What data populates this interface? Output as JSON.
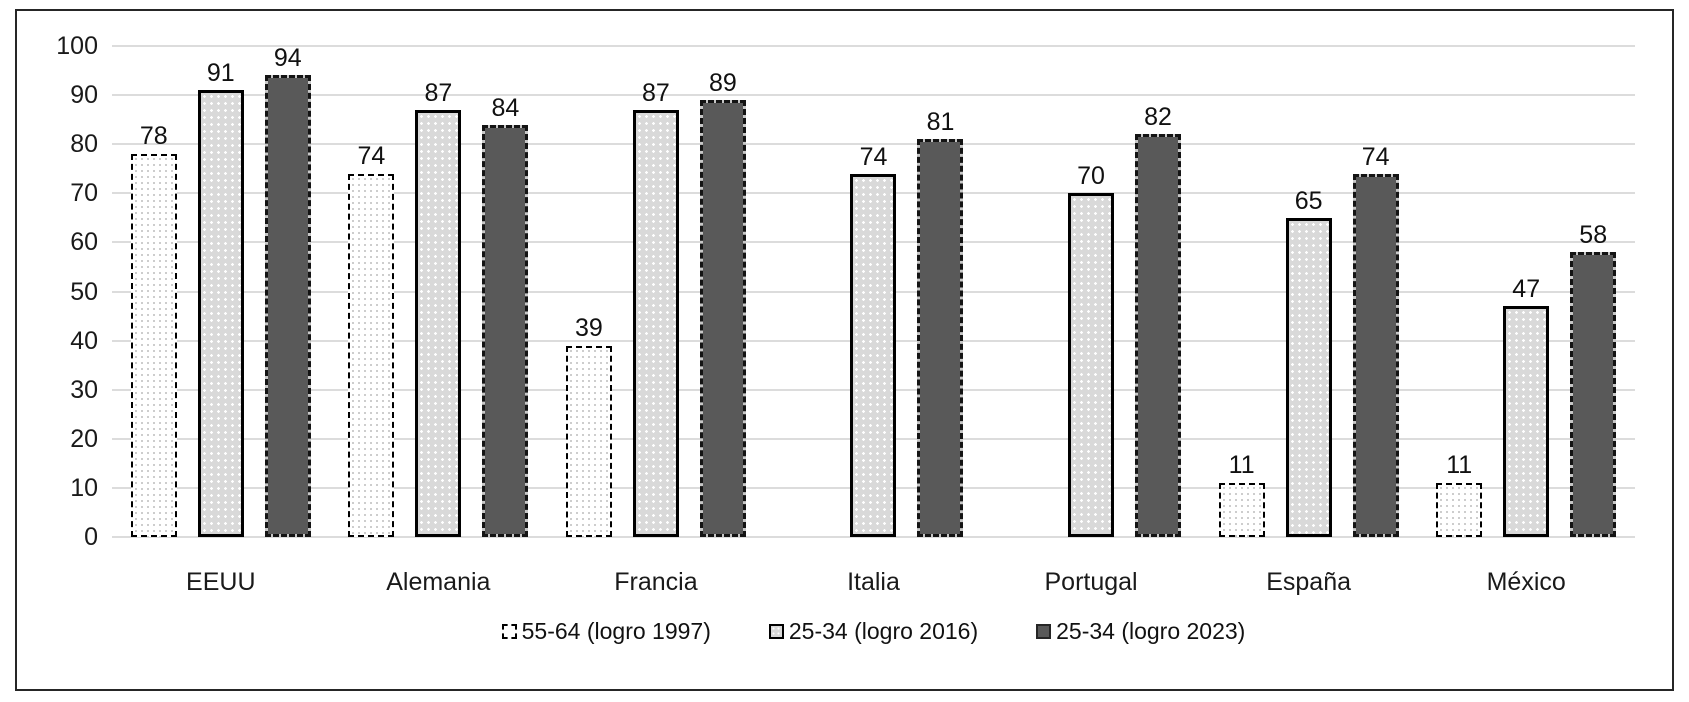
{
  "chart_data": {
    "type": "bar",
    "title": "",
    "xlabel": "",
    "ylabel": "",
    "categories": [
      "EEUU",
      "Alemania",
      "Francia",
      "Italia",
      "Portugal",
      "España",
      "México"
    ],
    "series": [
      {
        "name": "55-64 (logro 1997)",
        "style": "dotted-white-dashed-outline",
        "values": [
          78,
          74,
          39,
          null,
          null,
          11,
          11
        ]
      },
      {
        "name": "25-34 (logro 2016)",
        "style": "light-gray-dotted-solid-outline",
        "values": [
          91,
          87,
          87,
          74,
          70,
          65,
          47
        ]
      },
      {
        "name": "25-34 (logro 2023)",
        "style": "dark-gray-dashed-outline",
        "values": [
          94,
          84,
          89,
          81,
          82,
          74,
          58
        ]
      }
    ],
    "ylim": [
      0,
      100
    ],
    "yticks": [
      0,
      10,
      20,
      30,
      40,
      50,
      60,
      70,
      80,
      90,
      100
    ],
    "grid": "horizontal",
    "legend_position": "bottom",
    "value_labels": true,
    "colors": {
      "series1_fill": "#ffffff",
      "series1_border": "#000000",
      "series2_fill": "#d9d9d9",
      "series2_border": "#000000",
      "series3_fill": "#595959",
      "series3_border": "#141414",
      "gridline": "#dcdcdc",
      "frame_border": "#262626",
      "text": "#1a1a1a"
    }
  }
}
